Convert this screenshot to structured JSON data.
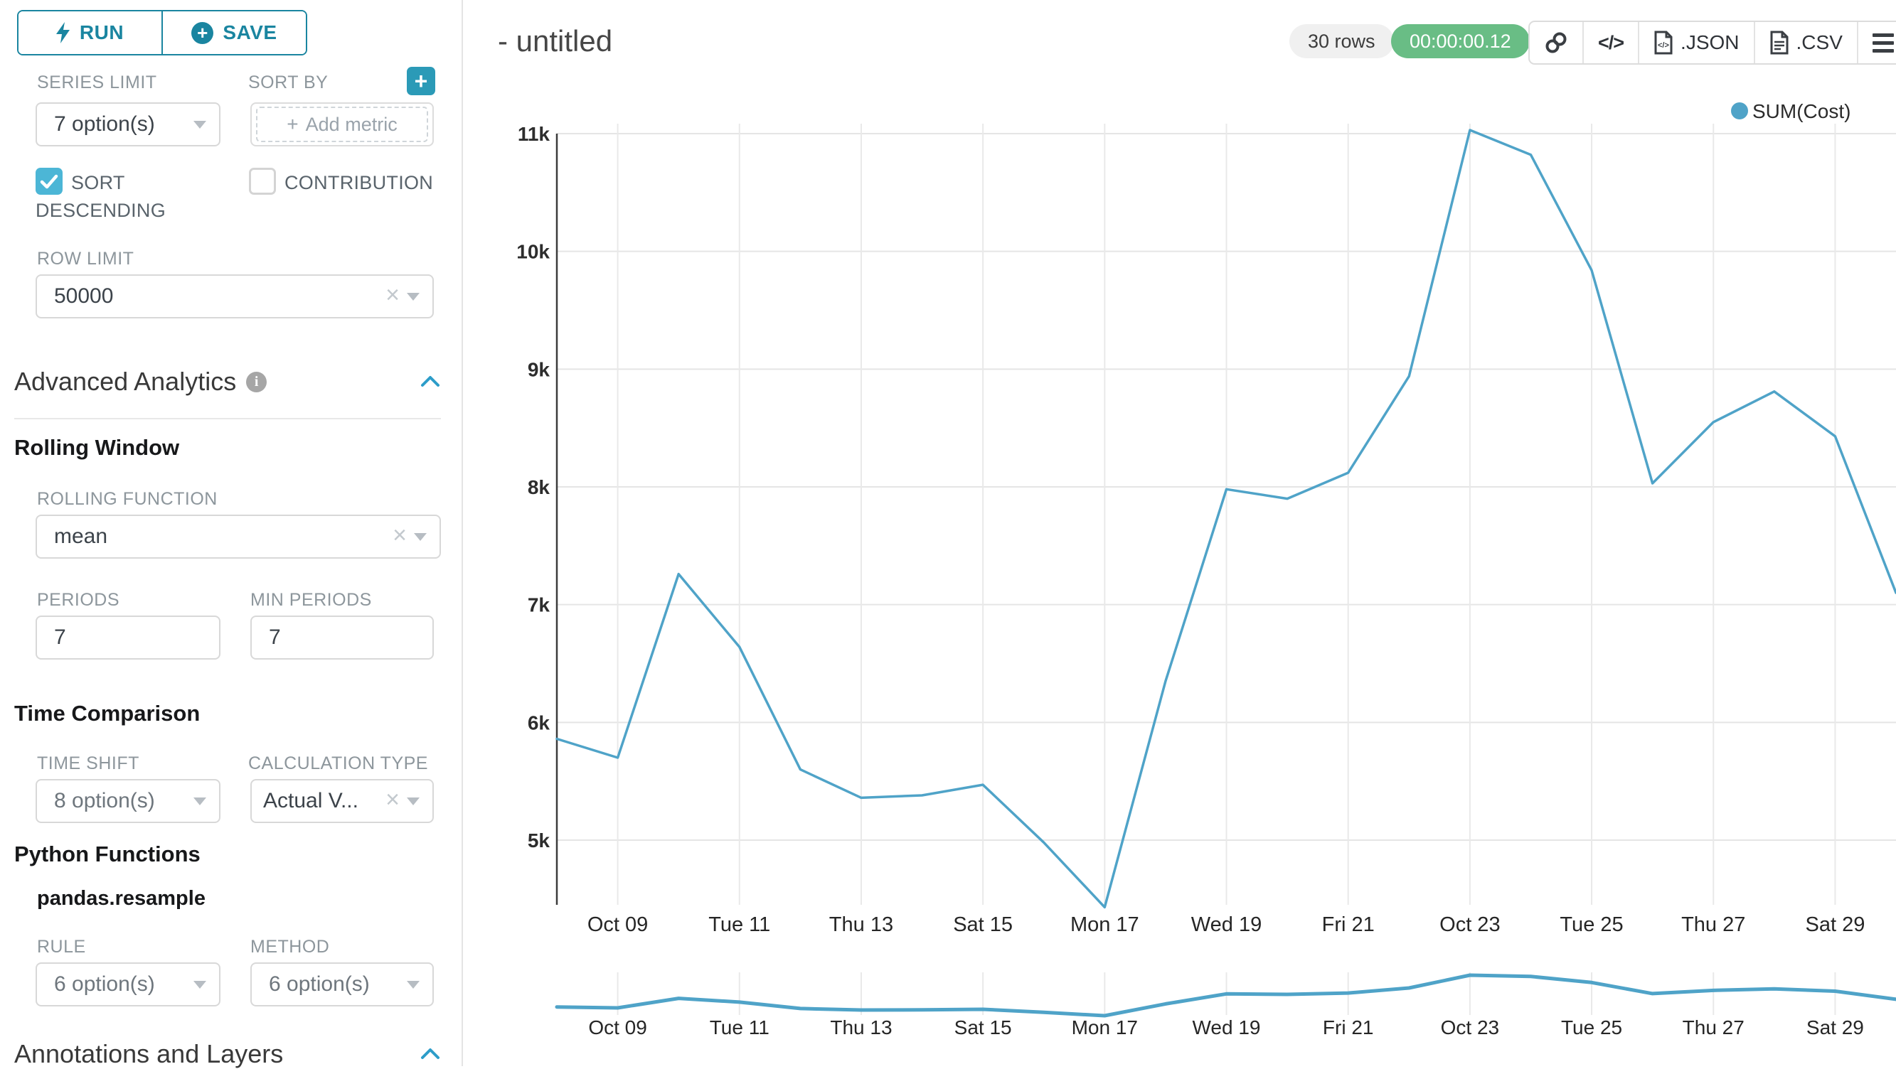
{
  "sidebar": {
    "run_label": "RUN",
    "save_label": "SAVE",
    "series_limit": {
      "label": "SERIES LIMIT",
      "value": "7 option(s)"
    },
    "sort_by": {
      "label": "SORT BY",
      "placeholder": "Add metric",
      "plus_sign": "+"
    },
    "sort_descending": {
      "label": "SORT DESCENDING",
      "checked": true
    },
    "contribution": {
      "label": "CONTRIBUTION",
      "checked": false
    },
    "row_limit": {
      "label": "ROW LIMIT",
      "value": "50000"
    },
    "advanced_analytics": {
      "title": "Advanced Analytics"
    },
    "rolling_window": {
      "title": "Rolling Window",
      "rolling_function": {
        "label": "ROLLING FUNCTION",
        "value": "mean"
      },
      "periods": {
        "label": "PERIODS",
        "value": "7"
      },
      "min_periods": {
        "label": "MIN PERIODS",
        "value": "7"
      }
    },
    "time_comparison": {
      "title": "Time Comparison",
      "time_shift": {
        "label": "TIME SHIFT",
        "value": "8 option(s)"
      },
      "calculation_type": {
        "label": "CALCULATION TYPE",
        "value": "Actual V..."
      }
    },
    "python_functions": {
      "title": "Python Functions",
      "subtitle": "pandas.resample",
      "rule": {
        "label": "RULE",
        "value": "6 option(s)"
      },
      "method": {
        "label": "METHOD",
        "value": "6 option(s)"
      }
    },
    "annotations": {
      "title": "Annotations and Layers"
    }
  },
  "header": {
    "title": "- untitled",
    "rows_badge": "30 rows",
    "timer_badge": "00:00:00.12",
    "export_json_label": ".JSON",
    "export_csv_label": ".CSV"
  },
  "icons": {
    "run": "lightning-bolt-icon",
    "save": "plus-circle-icon",
    "sort_by_add": "plus-icon",
    "info": "info-icon",
    "collapse": "chevron-up-icon",
    "select_caret": "caret-down-icon",
    "clear": "close-x-icon",
    "share": "link-icon",
    "embed": "code-icon",
    "export_json": "file-json-icon",
    "export_csv": "file-csv-icon",
    "menu": "hamburger-menu-icon",
    "legend_marker": "dot-icon"
  },
  "colors": {
    "accent_teal": "#1a85a0",
    "accent_teal_light": "#2b9ab7",
    "checkbox_blue": "#4cb6d6",
    "line_blue": "#4fa3c8",
    "timer_green": "#69bd85",
    "rows_pill_bg": "#f0f0f0",
    "gridline": "#e5e5e5",
    "axis": "#3c3c3c"
  },
  "chart_data": {
    "type": "line",
    "title": "",
    "xlabel": "",
    "ylabel": "",
    "grid": true,
    "ylim": [
      4300,
      11200
    ],
    "legend_position": "top-right",
    "legend": {
      "entries": [
        {
          "label": "SUM(Cost)",
          "color": "#4fa3c8"
        }
      ]
    },
    "x": [
      "Oct 08",
      "Oct 09",
      "Oct 10",
      "Oct 11",
      "Oct 12",
      "Oct 13",
      "Oct 14",
      "Oct 15",
      "Oct 16",
      "Oct 17",
      "Oct 18",
      "Oct 19",
      "Oct 20",
      "Oct 21",
      "Oct 22",
      "Oct 23",
      "Oct 24",
      "Oct 25",
      "Oct 26",
      "Oct 27",
      "Oct 28",
      "Oct 29",
      "Oct 30"
    ],
    "series": [
      {
        "name": "SUM(Cost)",
        "color": "#4fa3c8",
        "values": [
          5860,
          5700,
          7260,
          6640,
          5600,
          5360,
          5380,
          5470,
          4980,
          4430,
          6350,
          7980,
          7900,
          8120,
          8940,
          11030,
          10820,
          9840,
          8030,
          8550,
          8810,
          8430,
          7100
        ]
      }
    ],
    "y_ticks": [
      {
        "value": 5000,
        "label": "5k"
      },
      {
        "value": 6000,
        "label": "6k"
      },
      {
        "value": 7000,
        "label": "7k"
      },
      {
        "value": 8000,
        "label": "8k"
      },
      {
        "value": 9000,
        "label": "9k"
      },
      {
        "value": 10000,
        "label": "10k"
      },
      {
        "value": 11000,
        "label": "11k"
      }
    ],
    "x_ticks": [
      {
        "index": 1,
        "label": "Oct 09"
      },
      {
        "index": 3,
        "label": "Tue 11"
      },
      {
        "index": 5,
        "label": "Thu 13"
      },
      {
        "index": 7,
        "label": "Sat 15"
      },
      {
        "index": 9,
        "label": "Mon 17"
      },
      {
        "index": 11,
        "label": "Wed 19"
      },
      {
        "index": 13,
        "label": "Fri 21"
      },
      {
        "index": 15,
        "label": "Oct 23"
      },
      {
        "index": 17,
        "label": "Tue 25"
      },
      {
        "index": 19,
        "label": "Thu 27"
      },
      {
        "index": 21,
        "label": "Sat 29"
      }
    ],
    "mini_preview": {
      "enabled": true,
      "uses_same_series": true,
      "uses_same_x_ticks": true
    }
  }
}
